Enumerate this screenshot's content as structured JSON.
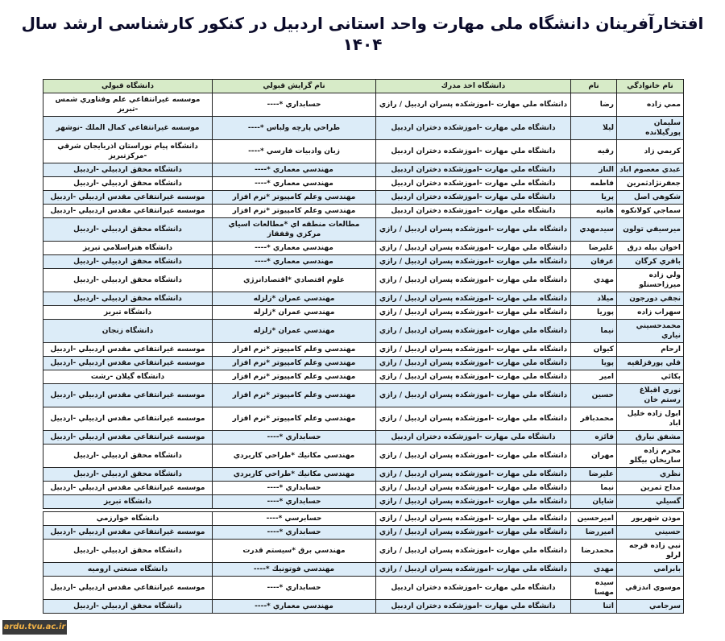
{
  "title": "افتخارآفرینان دانشگاه ملی مهارت واحد استانی اردبیل در کنکور کارشناسی ارشد سال ۱۴۰۴",
  "columns": [
    "نام خانوادگي",
    "نام",
    "دانشگاه اخذ مدرك",
    "نام گرايش قبولي",
    "دانشگاه قبولي"
  ],
  "colors": {
    "header_bg": "#d7ebc8",
    "alt_row_bg": "#dcecf8",
    "border": "#222222"
  },
  "table1": [
    [
      "ممي زاده",
      "رضا",
      "دانشگاه ملي مهارت -اموزشكده پسران اردبيل / رازي",
      "حسابداري *----",
      "موسسه غيرانتفاعي علم وفناوري شمس -تبريز"
    ],
    [
      "سليمان پورگيلانده",
      "ليلا",
      "دانشگاه ملي مهارت -اموزشكده دختران اردبيل",
      "طراحي پارچه ولباس *----",
      "موسسه غيرانتفاعي كمال الملك -نوشهر"
    ],
    [
      "كريمي زاد",
      "رقيه",
      "دانشگاه ملي مهارت -اموزشكده دختران اردبيل",
      "زبان وادبيات فارسي *----",
      "دانشگاه پيام نوراستان اذربايجان شرقي -مركزتبريز"
    ],
    [
      "عبدي معصوم اباد",
      "الناز",
      "دانشگاه ملي مهارت -اموزشكده دختران اردبيل",
      "مهندسي معماري *----",
      "دانشگاه محقق اردبيلي -اردبيل"
    ],
    [
      "جعفرنژادثمرين",
      "فاطمه",
      "دانشگاه ملي مهارت -اموزشكده دختران اردبيل",
      "مهندسي معماري *----",
      "دانشگاه محقق اردبيلي -اردبيل"
    ],
    [
      "شكوهي اصل",
      "پريا",
      "دانشگاه ملي مهارت -اموزشكده دختران اردبيل",
      "مهندسي وعلم كامپيوتر *نرم افزار",
      "موسسه غيرانتفاعي مقدس اردبيلي -اردبيل"
    ],
    [
      "سماجي كولانكوه",
      "هانيه",
      "دانشگاه ملي مهارت -اموزشكده دختران اردبيل",
      "مهندسي وعلم كامپيوتر *نرم افزار",
      "موسسه غيرانتفاعي مقدس اردبيلي -اردبيل"
    ],
    [
      "ميرسيفي تولون",
      "سيدمهدي",
      "دانشگاه ملي مهارت -اموزشكده پسران اردبيل / رازي",
      "مطالعات منطقه اي *مطالعات اسياي مركزي وقفقاز",
      "دانشگاه محقق اردبيلي -اردبيل"
    ],
    [
      "اخوان بيله درق",
      "عليرضا",
      "دانشگاه ملي مهارت -اموزشكده پسران اردبيل / رازي",
      "مهندسي معماري *----",
      "دانشگاه هنراسلامي تبريز"
    ],
    [
      "باقري كرگان",
      "عرفان",
      "دانشگاه ملي مهارت -اموزشكده پسران اردبيل / رازي",
      "مهندسي معماري *----",
      "دانشگاه محقق اردبيلي -اردبيل"
    ],
    [
      "ولي زاده ميرزاحسنلو",
      "مهدي",
      "دانشگاه ملي مهارت -اموزشكده پسران اردبيل / رازي",
      "علوم اقتصادي *اقتصادانرژي",
      "دانشگاه محقق اردبيلي -اردبيل"
    ],
    [
      "نجفي دورجون",
      "ميلاد",
      "دانشگاه ملي مهارت -اموزشكده پسران اردبيل / رازي",
      "مهندسي عمران *زلزله",
      "دانشگاه محقق اردبيلي -اردبيل"
    ],
    [
      "سهراب زاده",
      "پوريا",
      "دانشگاه ملي مهارت -اموزشكده پسران اردبيل / رازي",
      "مهندسي عمران *زلزله",
      "دانشگاه تبريز"
    ],
    [
      "محمدحسيني نياري",
      "نيما",
      "دانشگاه ملي مهارت -اموزشكده پسران اردبيل / رازي",
      "مهندسي عمران *زلزله",
      "دانشگاه زنجان"
    ],
    [
      "ارحام",
      "كيوان",
      "دانشگاه ملي مهارت -اموزشكده پسران اردبيل / رازي",
      "مهندسي وعلم كامپيوتر *نرم افزار",
      "موسسه غيرانتفاعي مقدس اردبيلي -اردبيل"
    ],
    [
      "قلي پورقزلقيه",
      "پويا",
      "دانشگاه ملي مهارت -اموزشكده پسران اردبيل / رازي",
      "مهندسي وعلم كامپيوتر *نرم افزار",
      "موسسه غيرانتفاعي مقدس اردبيلي -اردبيل"
    ],
    [
      "بكائي",
      "امير",
      "دانشگاه ملي مهارت -اموزشكده پسران اردبيل / رازي",
      "مهندسي وعلم كامپيوتر *نرم افزار",
      "دانشگاه گيلان -رشت"
    ],
    [
      "نوري اقبلاغ رستم خان",
      "حسين",
      "دانشگاه ملي مهارت -اموزشكده پسران اردبيل / رازي",
      "مهندسي وعلم كامپيوتر *نرم افزار",
      "موسسه غيرانتفاعي مقدس اردبيلي -اردبيل"
    ],
    [
      "ابول زاده خليل اباد",
      "محمدباقر",
      "دانشگاه ملي مهارت -اموزشكده پسران اردبيل / رازي",
      "مهندسي وعلم كامپيوتر *نرم افزار",
      "موسسه غيرانتفاعي مقدس اردبيلي -اردبيل"
    ],
    [
      "مشفق نيارق",
      "فائزه",
      "دانشگاه ملي مهارت -اموزشكده دختران اردبيل",
      "حسابداري *----",
      "موسسه غيرانتفاعي مقدس اردبيلي -اردبيل"
    ],
    [
      "محرم زاده ساريخان بيگلو",
      "مهران",
      "دانشگاه ملي مهارت -اموزشكده پسران اردبيل / رازي",
      "مهندسي مكانيك *طراحي كاربردي",
      "دانشگاه محقق اردبيلي -اردبيل"
    ],
    [
      "نظري",
      "عليرضا",
      "دانشگاه ملي مهارت -اموزشكده پسران اردبيل / رازي",
      "مهندسي مكانيك *طراحي كاربردي",
      "دانشگاه محقق اردبيلي -اردبيل"
    ],
    [
      "مداح ثمرين",
      "نيما",
      "دانشگاه ملي مهارت -اموزشكده پسران اردبيل / رازي",
      "حسابداري *----",
      "موسسه غيرانتفاعي مقدس اردبيلي -اردبيل"
    ],
    [
      "گسيلي",
      "شايان",
      "دانشگاه ملي مهارت -اموزشكده پسران اردبيل / رازي",
      "حسابداري *----",
      "دانشگاه تبريز"
    ]
  ],
  "table2": [
    [
      "موذن شهريور",
      "اميرحسين",
      "دانشگاه ملي مهارت -اموزشكده پسران اردبيل / رازي",
      "حسابرسي *----",
      "دانشگاه خوارزمي"
    ],
    [
      "حسيني",
      "اميررضا",
      "دانشگاه ملي مهارت -اموزشكده پسران اردبيل / رازي",
      "حسابداري *----",
      "موسسه غيرانتفاعي مقدس اردبيلي -اردبيل"
    ],
    [
      "نبي زاده قرجه لرلو",
      "محمدرضا",
      "دانشگاه ملي مهارت -اموزشكده پسران اردبيل / رازي",
      "مهندسي برق *سيستم قدرت",
      "دانشگاه محقق اردبيلي -اردبيل"
    ],
    [
      "بابرامي",
      "مهدي",
      "دانشگاه ملي مهارت -اموزشكده پسران اردبيل / رازي",
      "مهندسي فوتونيك *----",
      "دانشگاه صنعتي اروميه"
    ],
    [
      "موسوي اندزقي",
      "سيده مهسا",
      "دانشگاه ملي مهارت -اموزشكده دختران اردبيل",
      "حسابداري *----",
      "موسسه غيرانتفاعي مقدس اردبيلي -اردبيل"
    ],
    [
      "سرجامي",
      "اتنا",
      "دانشگاه ملي مهارت -اموزشكده دختران اردبيل",
      "مهندسي معماري *----",
      "دانشگاه محقق اردبيلي -اردبيل"
    ]
  ],
  "watermark": "ardu.tvu.ac.ir"
}
